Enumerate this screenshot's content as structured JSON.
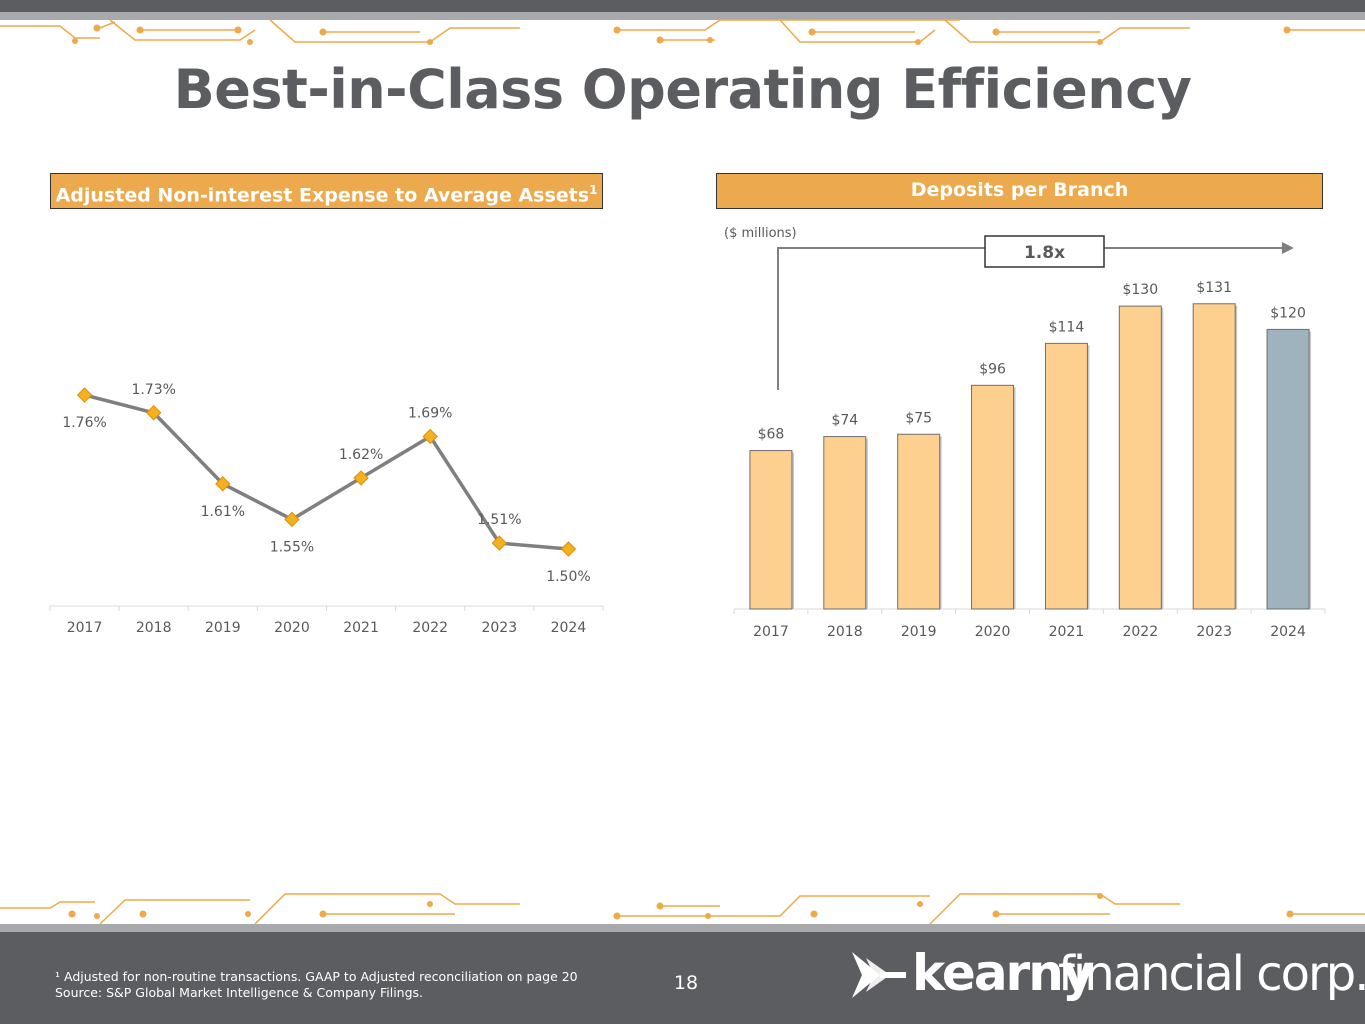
{
  "title": "Best-in-Class Operating Efficiency",
  "left_panel": {
    "title": "Adjusted Non-interest Expense to Average Assets",
    "superscript": "1"
  },
  "right_panel": {
    "title": "Deposits per Branch",
    "unit_note": "($ millions)",
    "growth_label": "1.8x"
  },
  "chart_data": [
    {
      "type": "line",
      "title": "Adjusted Non-interest Expense to Average Assets",
      "categories": [
        "2017",
        "2018",
        "2019",
        "2020",
        "2021",
        "2022",
        "2023",
        "2024"
      ],
      "values": [
        1.76,
        1.73,
        1.61,
        1.55,
        1.62,
        1.69,
        1.51,
        1.5
      ],
      "labels": [
        "1.76%",
        "1.73%",
        "1.61%",
        "1.55%",
        "1.62%",
        "1.69%",
        "1.51%",
        "1.50%"
      ],
      "ylim": [
        1.1,
        1.8
      ],
      "colors": {
        "line": "#7f7f7f",
        "marker": "#f5b01e",
        "marker_edge": "#e08e0b"
      }
    },
    {
      "type": "bar",
      "title": "Deposits per Branch",
      "ylabel": "($ millions)",
      "categories": [
        "2017",
        "2018",
        "2019",
        "2020",
        "2021",
        "2022",
        "2023",
        "2024"
      ],
      "values": [
        68,
        74,
        75,
        96,
        114,
        130,
        131,
        120
      ],
      "labels": [
        "$68",
        "$74",
        "$75",
        "$96",
        "$114",
        "$130",
        "$131",
        "$120"
      ],
      "ylim": [
        0,
        131
      ],
      "colors": {
        "bar": "#fdd08f",
        "highlight": "#9fb3bf",
        "edge": "#6e6e6e"
      },
      "highlight_index": 7,
      "annotation": "1.8x"
    }
  ],
  "footer": {
    "footnote_line1": "¹ Adjusted for non-routine transactions. GAAP to Adjusted reconciliation on page 20",
    "footnote_line2": "Source: S&P Global Market Intelligence & Company Filings.",
    "page_number": "18",
    "logo_word": "kearny",
    "logo_rest": "financial corp."
  },
  "colors": {
    "accent": "#eda94e",
    "dark_gray": "#5b5d60",
    "light_gray": "#a7a9ac",
    "circuit": "#f0a94a"
  }
}
